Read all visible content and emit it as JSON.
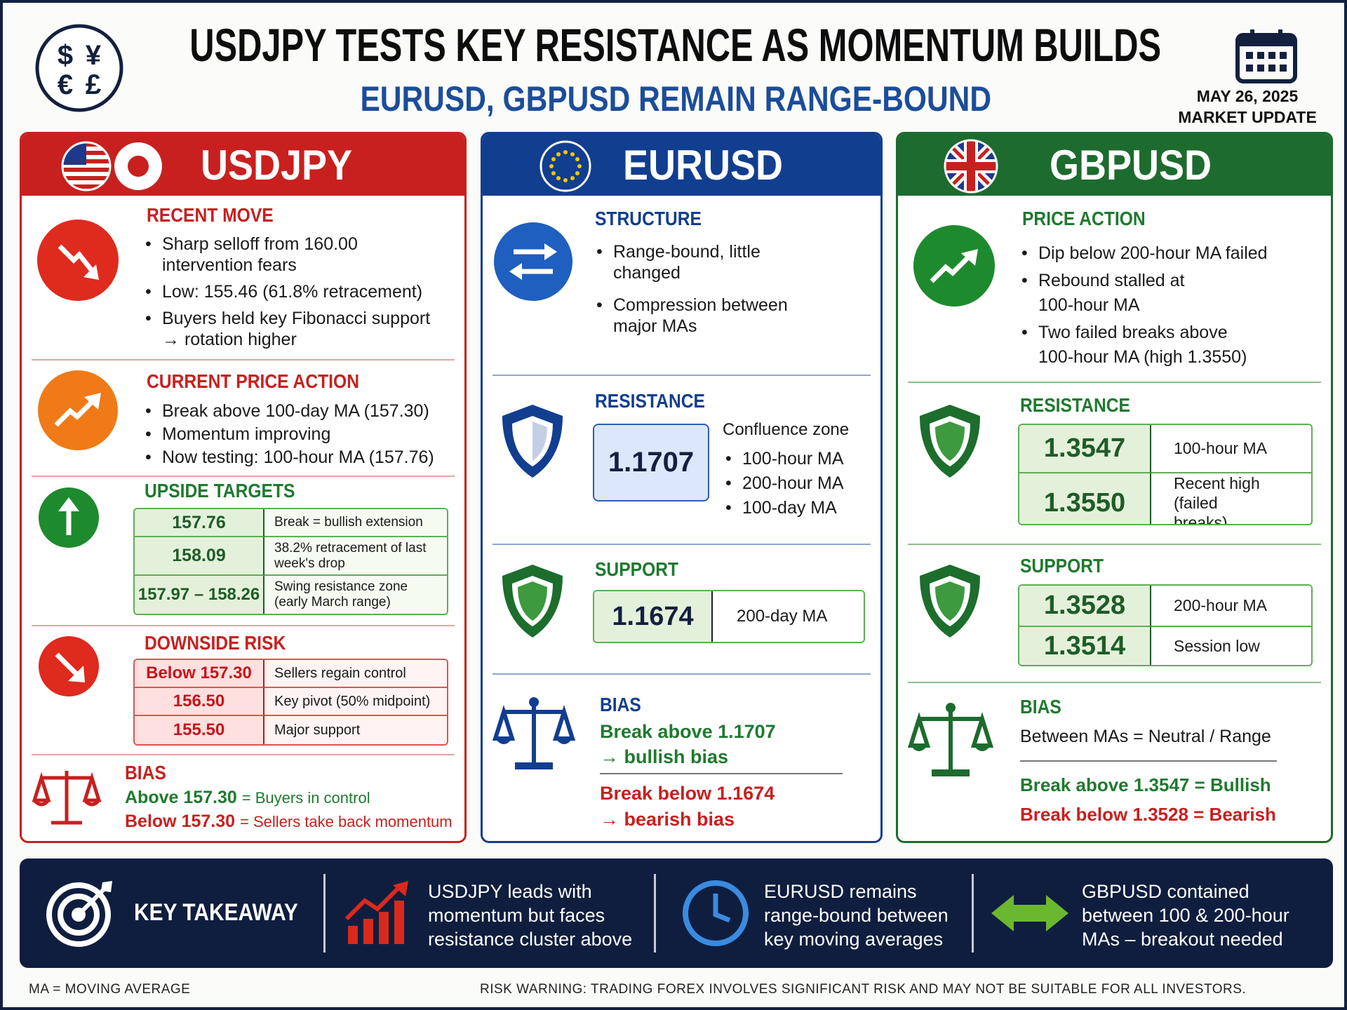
{
  "header": {
    "title": "USDJPY TESTS KEY RESISTANCE AS MOMENTUM BUILDS",
    "subtitle": "EURUSD, GBPUSD REMAIN RANGE-BOUND",
    "symbols": [
      "$",
      "¥",
      "€",
      "£"
    ],
    "date": "MAY 26, 2025",
    "tag": "MARKET UPDATE"
  },
  "usdjpy": {
    "name": "USDJPY",
    "recent_move": {
      "heading": "RECENT MOVE",
      "bullets": [
        "Sharp selloff from 160.00 intervention fears",
        "Low: 155.46 (61.8% retracement)",
        "Buyers held key Fibonacci support → rotation higher"
      ]
    },
    "current_price_action": {
      "heading": "CURRENT PRICE ACTION",
      "bullets": [
        "Break above 100-day MA (157.30)",
        "Momentum improving",
        "Now testing: 100-hour MA (157.76)"
      ]
    },
    "upside_targets": {
      "heading": "UPSIDE TARGETS",
      "rows": [
        [
          "157.76",
          "Break = bullish extension"
        ],
        [
          "158.09",
          "38.2% retracement of last week's drop"
        ],
        [
          "157.97 – 158.26",
          "Swing resistance zone (early March range)"
        ]
      ]
    },
    "downside_risk": {
      "heading": "DOWNSIDE RISK",
      "rows": [
        [
          "Below 157.30",
          "Sellers regain control"
        ],
        [
          "156.50",
          "Key pivot (50% midpoint)"
        ],
        [
          "155.50",
          "Major support"
        ]
      ]
    },
    "bias": {
      "heading": "BIAS",
      "lines": [
        {
          "level": "Above 157.30",
          "text": "= Buyers in control"
        },
        {
          "level": "Below 157.30",
          "text": "= Sellers take back momentum"
        }
      ]
    }
  },
  "eurusd": {
    "name": "EURUSD",
    "structure": {
      "heading": "STRUCTURE",
      "bullets": [
        "Range-bound, little changed",
        "Compression between major MAs"
      ]
    },
    "resistance": {
      "heading": "RESISTANCE",
      "level": "1.1707",
      "label": "Confluence zone",
      "items": [
        "100-hour MA",
        "200-hour MA",
        "100-day MA"
      ]
    },
    "support": {
      "heading": "SUPPORT",
      "level": "1.1674",
      "note": "200-day MA"
    },
    "bias": {
      "heading": "BIAS",
      "bullish": [
        "Break above 1.1707",
        "→ bullish bias"
      ],
      "bearish": [
        "Break below 1.1674",
        "→ bearish bias"
      ]
    }
  },
  "gbpusd": {
    "name": "GBPUSD",
    "price_action": {
      "heading": "PRICE ACTION",
      "bullets": [
        "Dip below 200-hour MA failed",
        "Rebound stalled at 100-hour MA",
        "Two failed breaks above 100-hour MA (high 1.3550)"
      ]
    },
    "resistance": {
      "heading": "RESISTANCE",
      "rows": [
        [
          "1.3547",
          "100-hour MA"
        ],
        [
          "1.3550",
          "Recent high (failed breaks)"
        ]
      ]
    },
    "support": {
      "heading": "SUPPORT",
      "rows": [
        [
          "1.3528",
          "200-hour MA"
        ],
        [
          "1.3514",
          "Session low"
        ]
      ]
    },
    "bias": {
      "heading": "BIAS",
      "neutral": "Between MAs = Neutral / Range",
      "bullish": "Break above 1.3547 = Bullish",
      "bearish": "Break below 1.3528 = Bearish"
    }
  },
  "takeaway": {
    "heading": "KEY TAKEAWAY",
    "items": [
      "USDJPY leads with momentum but faces resistance cluster above",
      "EURUSD remains range-bound between key moving averages",
      "GBPUSD contained between 100 & 200-hour MAs – breakout needed"
    ]
  },
  "footer": {
    "note": "MA = MOVING AVERAGE",
    "warning": "RISK WARNING: TRADING FOREX INVOLVES SIGNIFICANT RISK AND MAY NOT BE SUITABLE FOR ALL INVESTORS."
  }
}
